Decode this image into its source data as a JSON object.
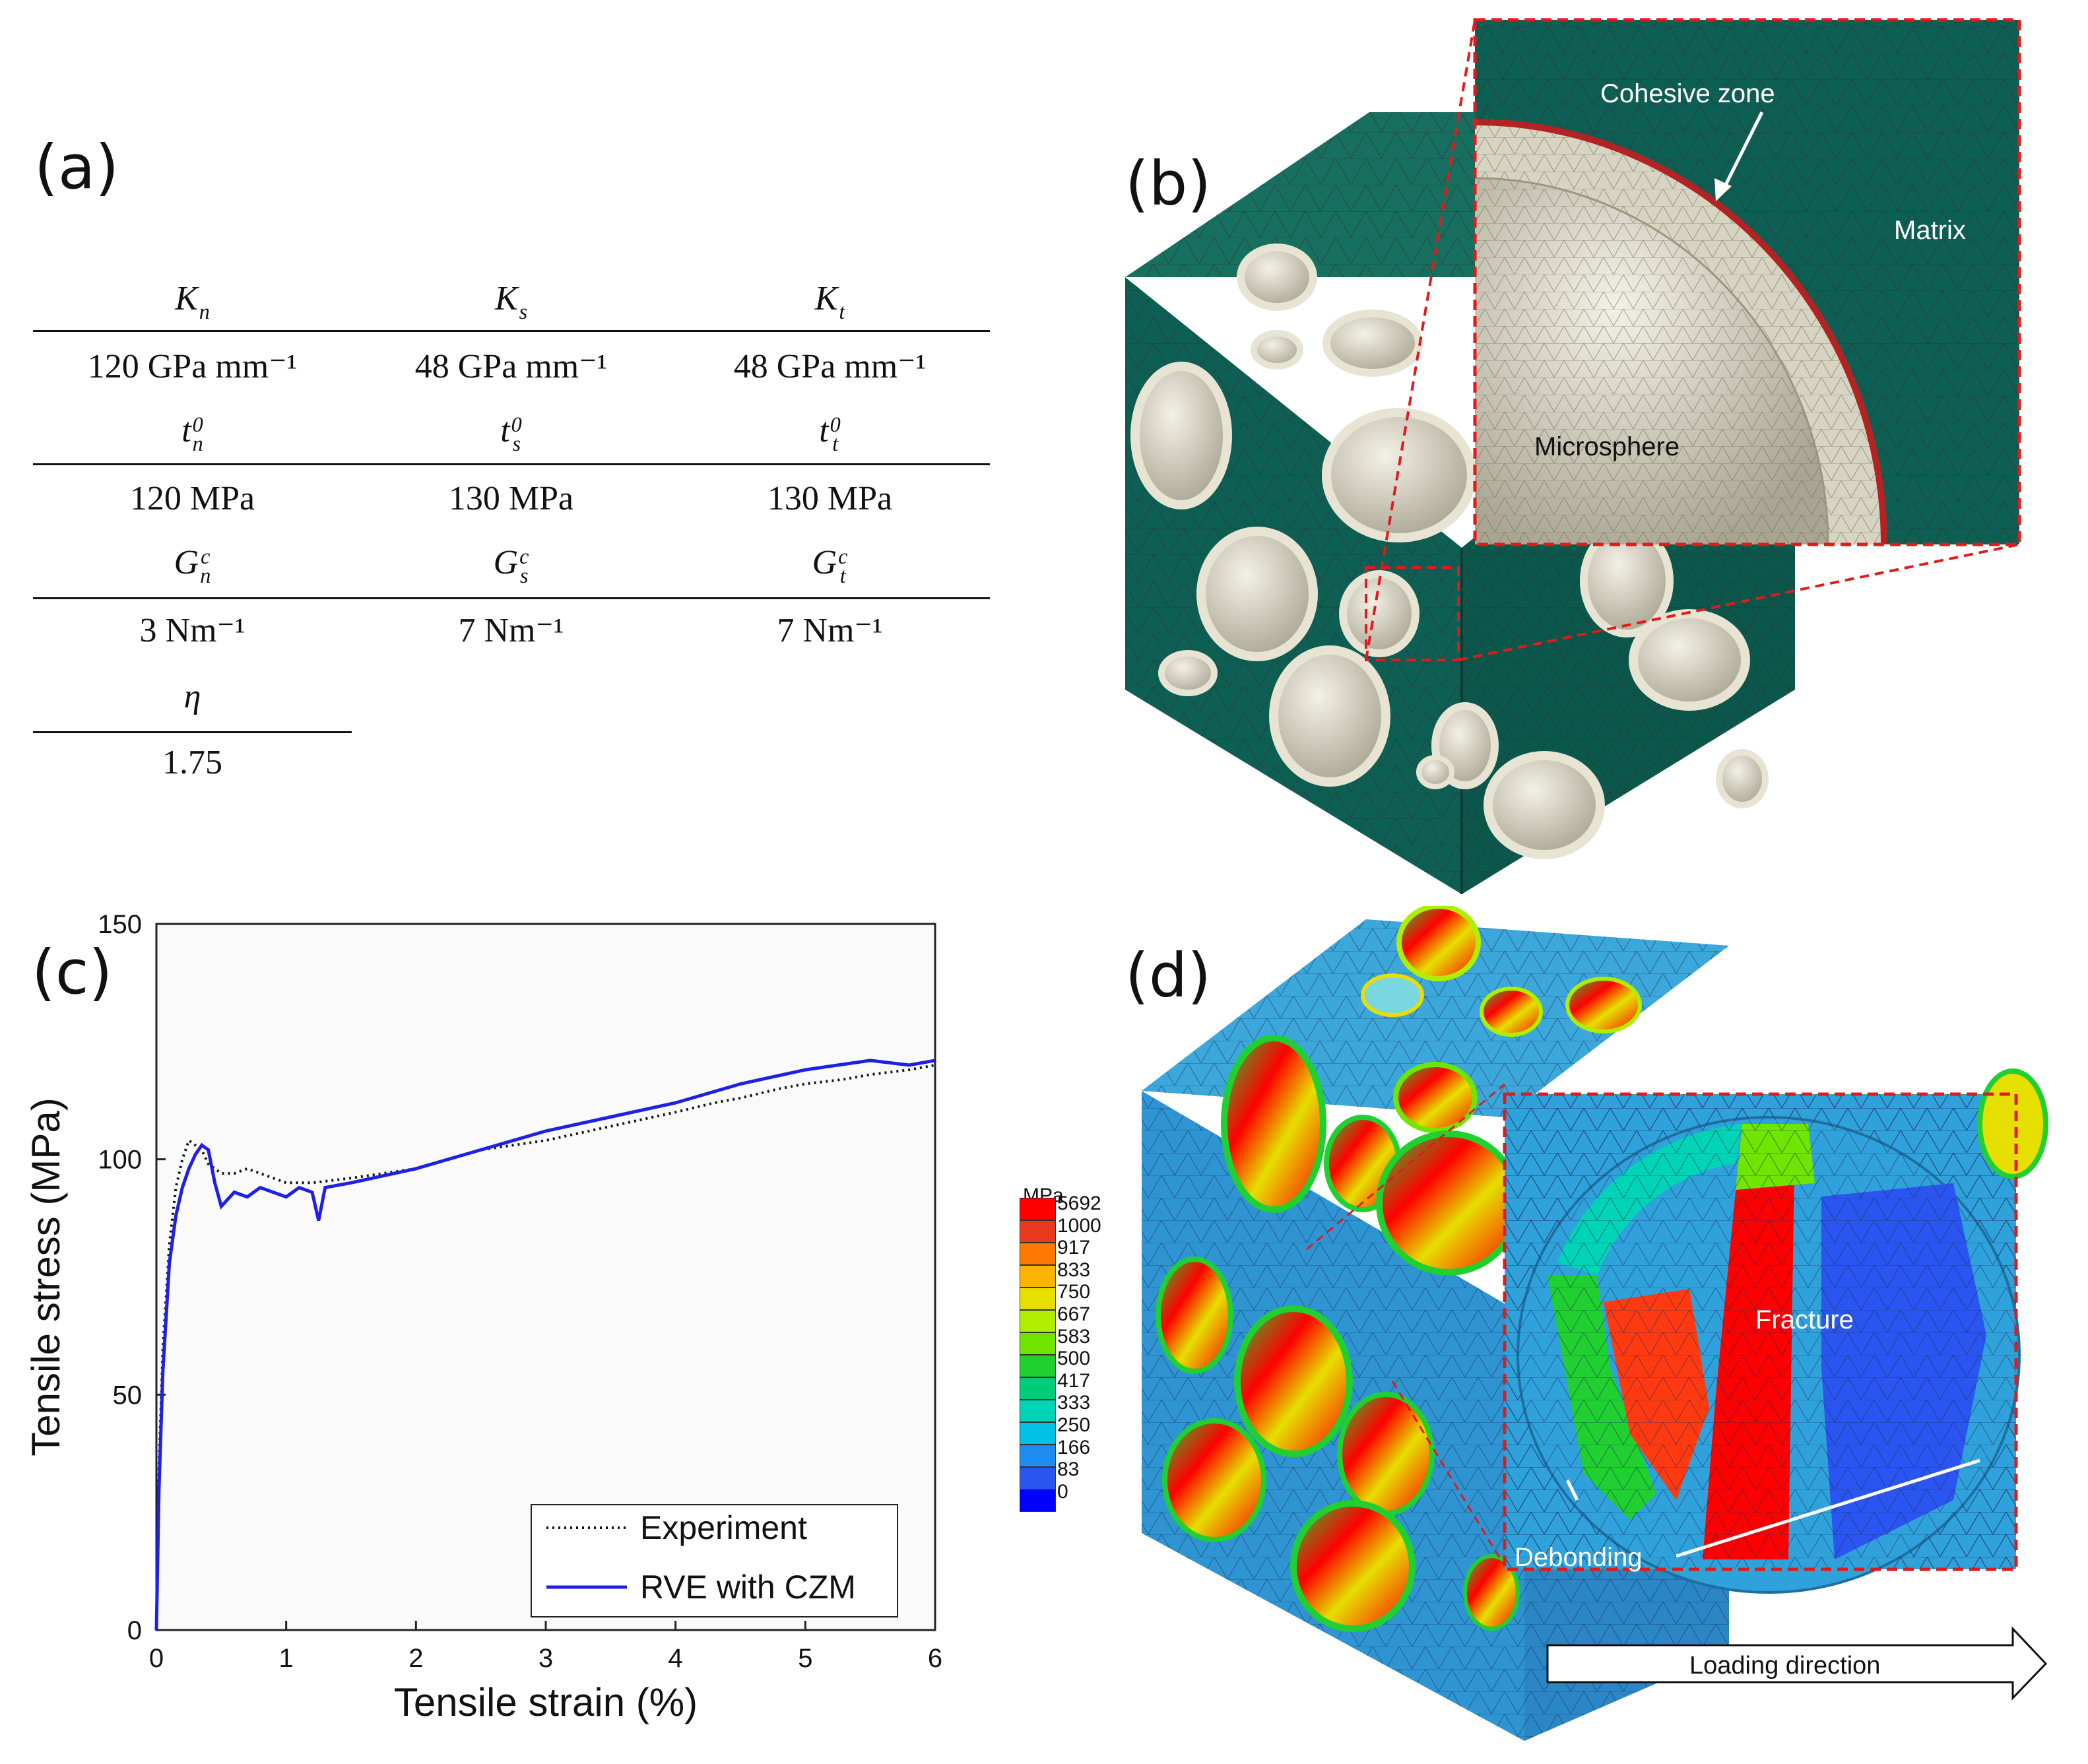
{
  "panels": {
    "a": "(a)",
    "b": "(b)",
    "c": "(c)",
    "d": "(d)"
  },
  "table": {
    "groups": [
      {
        "symbols": [
          {
            "base": "K",
            "sub": "n",
            "sup": ""
          },
          {
            "base": "K",
            "sub": "s",
            "sup": ""
          },
          {
            "base": "K",
            "sub": "t",
            "sup": ""
          }
        ],
        "values": [
          "120 GPa mm⁻¹",
          "48 GPa mm⁻¹",
          "48 GPa mm⁻¹"
        ]
      },
      {
        "symbols": [
          {
            "base": "t",
            "sub": "n",
            "sup": "0"
          },
          {
            "base": "t",
            "sub": "s",
            "sup": "0"
          },
          {
            "base": "t",
            "sub": "t",
            "sup": "0"
          }
        ],
        "values": [
          "120 MPa",
          "130 MPa",
          "130 MPa"
        ]
      },
      {
        "symbols": [
          {
            "base": "G",
            "sub": "n",
            "sup": "c"
          },
          {
            "base": "G",
            "sub": "s",
            "sup": "c"
          },
          {
            "base": "G",
            "sub": "t",
            "sup": "c"
          }
        ],
        "values": [
          "3 Nm⁻¹",
          "7 Nm⁻¹",
          "7 Nm⁻¹"
        ]
      },
      {
        "symbols": [
          {
            "base": "η",
            "sub": "",
            "sup": ""
          }
        ],
        "values": [
          "1.75"
        ]
      }
    ]
  },
  "model_b": {
    "callouts": {
      "cohesive_zone": "Cohesive zone",
      "matrix": "Matrix",
      "microsphere": "Microsphere"
    },
    "colors": {
      "matrix": "#0e5f53",
      "sphere": "#dcd8c6",
      "shell": "#c8c3ae",
      "cohesive": "#b32323",
      "zoom_border": "#e01b1b"
    }
  },
  "chart_data": {
    "type": "line",
    "title": "",
    "xlabel": "Tensile strain (%)",
    "ylabel": "Tensile stress (MPa)",
    "xlim": [
      0,
      6
    ],
    "ylim": [
      0,
      150
    ],
    "xticks": [
      0,
      1,
      2,
      3,
      4,
      5,
      6
    ],
    "yticks": [
      0,
      50,
      100,
      150
    ],
    "legend_position": "bottom-right",
    "series": [
      {
        "name": "Experiment",
        "style": "dotted",
        "color": "#111111",
        "x": [
          0,
          0.02,
          0.05,
          0.1,
          0.15,
          0.2,
          0.25,
          0.3,
          0.35,
          0.4,
          0.5,
          0.6,
          0.7,
          0.8,
          0.9,
          1.0,
          1.2,
          1.5,
          2.0,
          2.5,
          3.0,
          3.5,
          4.0,
          4.3,
          4.5,
          4.8,
          5.0,
          5.3,
          5.5,
          5.8,
          6.0
        ],
        "y": [
          0,
          35,
          60,
          82,
          94,
          100,
          104,
          103,
          102,
          99,
          97,
          97,
          98,
          97,
          96,
          95,
          95,
          96,
          98,
          102,
          104,
          107,
          110,
          112,
          113,
          115,
          116,
          117,
          118,
          119,
          120
        ]
      },
      {
        "name": "RVE with CZM",
        "style": "solid",
        "color": "#1f1fe6",
        "x": [
          0,
          0.02,
          0.05,
          0.1,
          0.15,
          0.2,
          0.25,
          0.3,
          0.35,
          0.4,
          0.45,
          0.5,
          0.6,
          0.7,
          0.8,
          0.9,
          1.0,
          1.1,
          1.2,
          1.25,
          1.3,
          1.5,
          2.0,
          2.5,
          3.0,
          3.5,
          4.0,
          4.5,
          5.0,
          5.5,
          5.8,
          6.0
        ],
        "y": [
          0,
          30,
          55,
          78,
          88,
          94,
          98,
          101,
          103,
          102,
          95,
          90,
          93,
          92,
          94,
          93,
          92,
          94,
          93,
          87,
          94,
          95,
          98,
          102,
          106,
          109,
          112,
          116,
          119,
          121,
          120,
          121
        ]
      }
    ]
  },
  "model_d": {
    "colorbar_unit": "MPa",
    "colorbar_values": [
      "5692",
      "1000",
      "917",
      "833",
      "750",
      "667",
      "583",
      "500",
      "417",
      "333",
      "250",
      "166",
      "83",
      "0"
    ],
    "colorbar_colors": [
      "#ff0000",
      "#e93a1d",
      "#ff7a00",
      "#ffb300",
      "#e6df00",
      "#b0ee00",
      "#6ee600",
      "#1fd030",
      "#00cc7a",
      "#00d4b6",
      "#00c2e6",
      "#1e8cf0",
      "#2a55f0",
      "#0000ff"
    ],
    "callouts": {
      "fracture": "Fracture",
      "debonding": "Debonding",
      "loading_direction": "Loading direction"
    }
  }
}
